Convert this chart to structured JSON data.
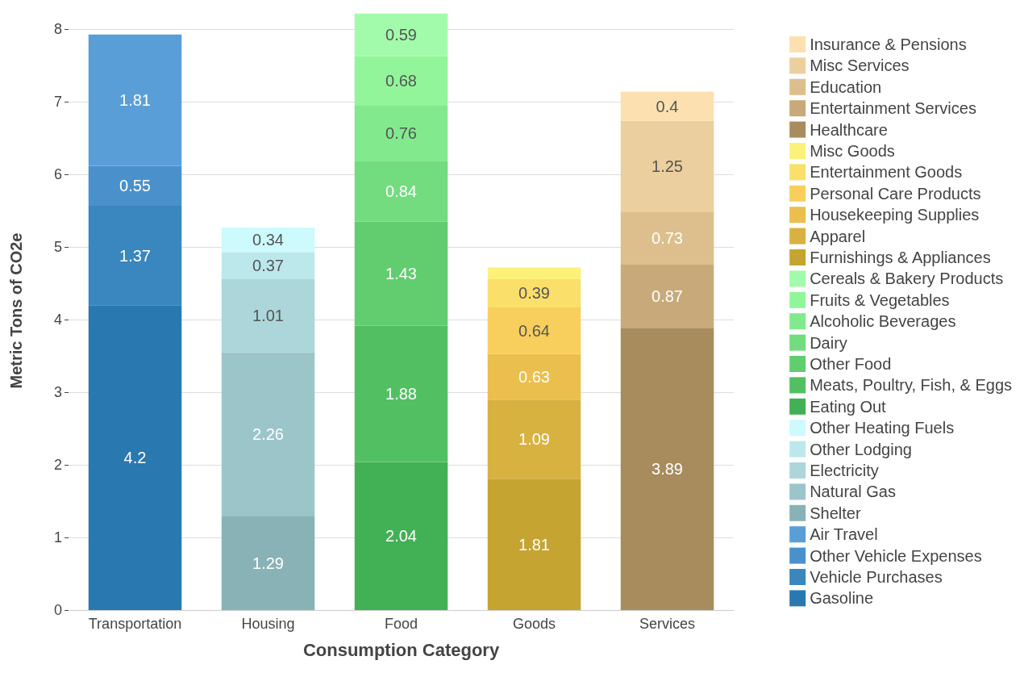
{
  "chart_data": {
    "type": "bar",
    "xlabel": "Consumption Category",
    "ylabel": "Metric Tons of CO2e",
    "categories": [
      "Transportation",
      "Housing",
      "Food",
      "Goods",
      "Services"
    ],
    "stacked": true,
    "ylim": [
      0,
      8.25
    ],
    "yticks": [
      0,
      1,
      2,
      3,
      4,
      5,
      6,
      7,
      8
    ],
    "grid": "y",
    "legend": "right",
    "series": [
      {
        "name": "Gasoline",
        "color": "#2a78b0",
        "values": [
          4.2,
          null,
          null,
          null,
          null
        ],
        "value_labels": [
          "4.2",
          null,
          null,
          null,
          null
        ]
      },
      {
        "name": "Vehicle Purchases",
        "color": "#3a86bf",
        "values": [
          1.37,
          null,
          null,
          null,
          null
        ],
        "value_labels": [
          "1.37",
          null,
          null,
          null,
          null
        ]
      },
      {
        "name": "Other Vehicle Expenses",
        "color": "#4a91cc",
        "values": [
          0.55,
          null,
          null,
          null,
          null
        ],
        "value_labels": [
          "0.55",
          null,
          null,
          null,
          null
        ]
      },
      {
        "name": "Air Travel",
        "color": "#5a9ed8",
        "values": [
          1.81,
          null,
          null,
          null,
          null
        ],
        "value_labels": [
          "1.81",
          null,
          null,
          null,
          null
        ]
      },
      {
        "name": "Shelter",
        "color": "#88b2b6",
        "values": [
          null,
          1.29,
          null,
          null,
          null
        ],
        "value_labels": [
          null,
          "1.29",
          null,
          null,
          null
        ]
      },
      {
        "name": "Natural Gas",
        "color": "#9cc5ca",
        "values": [
          null,
          2.26,
          null,
          null,
          null
        ],
        "value_labels": [
          null,
          "2.26",
          null,
          null,
          null
        ]
      },
      {
        "name": "Electricity",
        "color": "#acd6da",
        "values": [
          null,
          1.01,
          null,
          null,
          null
        ],
        "value_labels": [
          null,
          "1.01",
          null,
          null,
          null
        ]
      },
      {
        "name": "Other Lodging",
        "color": "#bce8ec",
        "values": [
          null,
          0.37,
          null,
          null,
          null
        ],
        "value_labels": [
          null,
          "0.37",
          null,
          null,
          null
        ]
      },
      {
        "name": "Other Heating Fuels",
        "color": "#ccfafd",
        "values": [
          null,
          0.34,
          null,
          null,
          null
        ],
        "value_labels": [
          null,
          "0.34",
          null,
          null,
          null
        ]
      },
      {
        "name": "Eating Out",
        "color": "#42b055",
        "values": [
          null,
          null,
          2.04,
          null,
          null
        ],
        "value_labels": [
          null,
          null,
          "2.04",
          null,
          null
        ]
      },
      {
        "name": "Meats, Poultry, Fish, & Eggs",
        "color": "#52c062",
        "values": [
          null,
          null,
          1.88,
          null,
          null
        ],
        "value_labels": [
          null,
          null,
          "1.88",
          null,
          null
        ]
      },
      {
        "name": "Other Food",
        "color": "#62cd6f",
        "values": [
          null,
          null,
          1.43,
          null,
          null
        ],
        "value_labels": [
          null,
          null,
          "1.43",
          null,
          null
        ]
      },
      {
        "name": "Dairy",
        "color": "#72dc7e",
        "values": [
          null,
          null,
          0.84,
          null,
          null
        ],
        "value_labels": [
          null,
          null,
          "0.84",
          null,
          null
        ]
      },
      {
        "name": "Alcoholic Beverages",
        "color": "#82ea8c",
        "values": [
          null,
          null,
          0.76,
          null,
          null
        ],
        "value_labels": [
          null,
          null,
          "0.76",
          null,
          null
        ]
      },
      {
        "name": "Fruits & Vegetables",
        "color": "#92f59a",
        "values": [
          null,
          null,
          0.68,
          null,
          null
        ],
        "value_labels": [
          null,
          null,
          "0.68",
          null,
          null
        ]
      },
      {
        "name": "Cereals & Bakery Products",
        "color": "#a2fbaa",
        "values": [
          null,
          null,
          0.59,
          null,
          null
        ],
        "value_labels": [
          null,
          null,
          "0.59",
          null,
          null
        ]
      },
      {
        "name": "Furnishings & Appliances",
        "color": "#c6a432",
        "values": [
          null,
          null,
          null,
          1.81,
          null
        ],
        "value_labels": [
          null,
          null,
          null,
          "1.81",
          null
        ]
      },
      {
        "name": "Apparel",
        "color": "#d8b240",
        "values": [
          null,
          null,
          null,
          1.09,
          null
        ],
        "value_labels": [
          null,
          null,
          null,
          "1.09",
          null
        ]
      },
      {
        "name": "Housekeeping Supplies",
        "color": "#eabf4e",
        "values": [
          null,
          null,
          null,
          0.63,
          null
        ],
        "value_labels": [
          null,
          null,
          null,
          "0.63",
          null
        ]
      },
      {
        "name": "Personal Care Products",
        "color": "#f8cf5c",
        "values": [
          null,
          null,
          null,
          0.64,
          null
        ],
        "value_labels": [
          null,
          null,
          null,
          "0.64",
          null
        ]
      },
      {
        "name": "Entertainment Goods",
        "color": "#fadf6a",
        "values": [
          null,
          null,
          null,
          0.39,
          null
        ],
        "value_labels": [
          null,
          null,
          null,
          "0.39",
          null
        ]
      },
      {
        "name": "Misc Goods",
        "color": "#fcf27a",
        "values": [
          null,
          null,
          null,
          0.16,
          null
        ],
        "value_labels": [
          null,
          null,
          null,
          null,
          null
        ]
      },
      {
        "name": "Healthcare",
        "color": "#a88c5e",
        "values": [
          null,
          null,
          null,
          null,
          3.89
        ],
        "value_labels": [
          null,
          null,
          null,
          null,
          "3.89"
        ]
      },
      {
        "name": "Entertainment Services",
        "color": "#c8aa7a",
        "values": [
          null,
          null,
          null,
          null,
          0.87
        ],
        "value_labels": [
          null,
          null,
          null,
          null,
          "0.87"
        ]
      },
      {
        "name": "Education",
        "color": "#dcbf8c",
        "values": [
          null,
          null,
          null,
          null,
          0.73
        ],
        "value_labels": [
          null,
          null,
          null,
          null,
          "0.73"
        ]
      },
      {
        "name": "Misc Services",
        "color": "#eccf9e",
        "values": [
          null,
          null,
          null,
          null,
          1.25
        ],
        "value_labels": [
          null,
          null,
          null,
          null,
          "1.25"
        ]
      },
      {
        "name": "Insurance & Pensions",
        "color": "#fce0b0",
        "values": [
          null,
          null,
          null,
          null,
          0.4
        ],
        "value_labels": [
          null,
          null,
          null,
          null,
          "0.4"
        ]
      }
    ]
  }
}
